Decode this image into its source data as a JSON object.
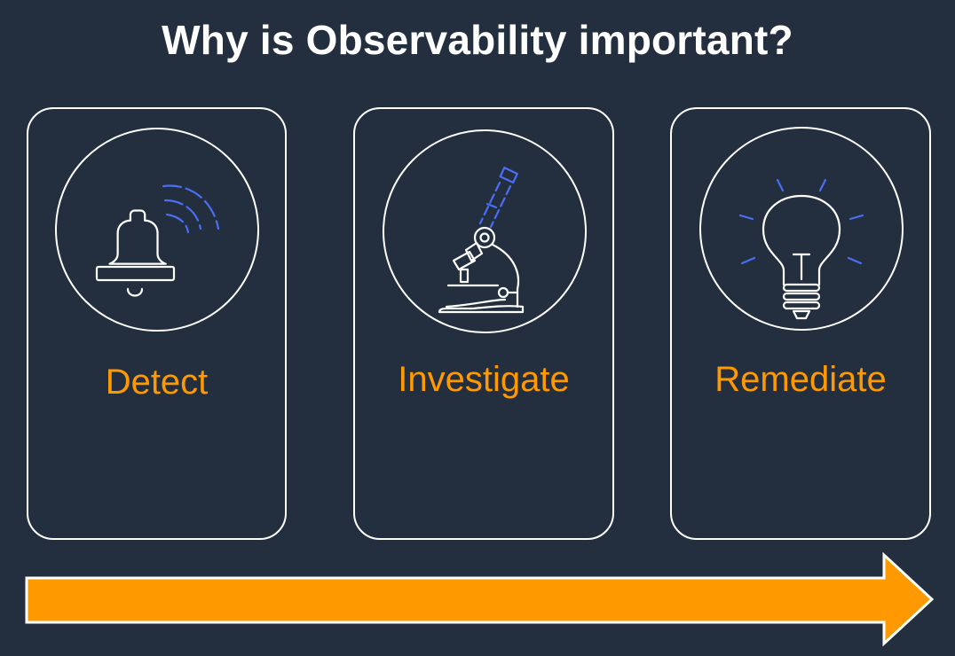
{
  "title": "Why is Observability important?",
  "steps": [
    {
      "label": "Detect",
      "icon": "bell-icon"
    },
    {
      "label": "Investigate",
      "icon": "microscope-icon"
    },
    {
      "label": "Remediate",
      "icon": "lightbulb-icon"
    }
  ],
  "colors": {
    "background": "#232f3e",
    "accent": "#ff9900",
    "line": "#ffffff",
    "highlight": "#4a6ef5"
  }
}
